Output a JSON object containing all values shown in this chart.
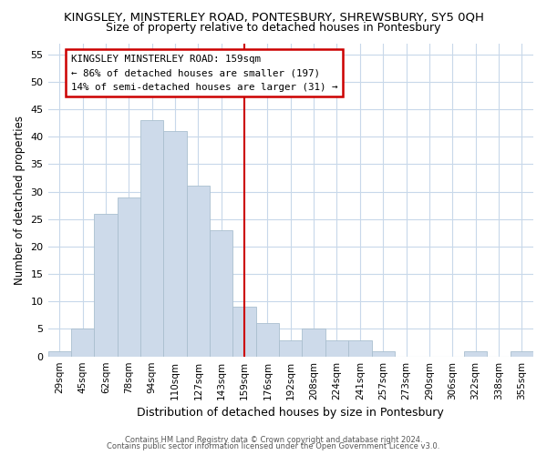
{
  "title": "KINGSLEY, MINSTERLEY ROAD, PONTESBURY, SHREWSBURY, SY5 0QH",
  "subtitle": "Size of property relative to detached houses in Pontesbury",
  "xlabel": "Distribution of detached houses by size in Pontesbury",
  "ylabel": "Number of detached properties",
  "bar_labels": [
    "29sqm",
    "45sqm",
    "62sqm",
    "78sqm",
    "94sqm",
    "110sqm",
    "127sqm",
    "143sqm",
    "159sqm",
    "176sqm",
    "192sqm",
    "208sqm",
    "224sqm",
    "241sqm",
    "257sqm",
    "273sqm",
    "290sqm",
    "306sqm",
    "322sqm",
    "338sqm",
    "355sqm"
  ],
  "bar_heights": [
    1,
    5,
    26,
    29,
    43,
    41,
    31,
    23,
    9,
    6,
    3,
    5,
    3,
    3,
    1,
    0,
    0,
    0,
    1,
    0,
    1
  ],
  "bar_color": "#cddaea",
  "bar_edge_color": "#aabfcf",
  "vline_x": 8,
  "vline_color": "#cc0000",
  "annotation_title": "KINGSLEY MINSTERLEY ROAD: 159sqm",
  "annotation_line1": "← 86% of detached houses are smaller (197)",
  "annotation_line2": "14% of semi-detached houses are larger (31) →",
  "annotation_box_color": "#ffffff",
  "annotation_box_edge": "#cc0000",
  "ylim": [
    0,
    57
  ],
  "yticks": [
    0,
    5,
    10,
    15,
    20,
    25,
    30,
    35,
    40,
    45,
    50,
    55
  ],
  "footer1": "Contains HM Land Registry data © Crown copyright and database right 2024.",
  "footer2": "Contains public sector information licensed under the Open Government Licence v3.0.",
  "title_fontsize": 9.5,
  "subtitle_fontsize": 9,
  "background_color": "#ffffff",
  "grid_color": "#c8d8ea"
}
